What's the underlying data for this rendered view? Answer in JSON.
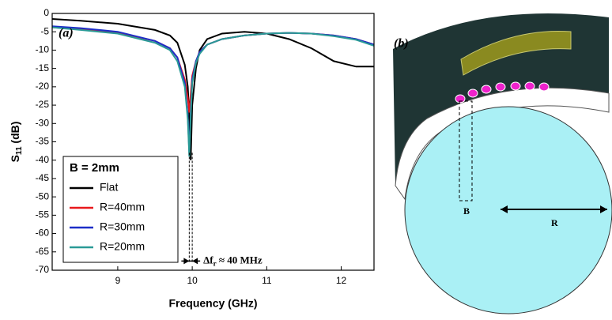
{
  "chart_data": {
    "type": "line",
    "panel_label": "(a)",
    "x_label": "Frequency (GHz)",
    "y_label_main": "S",
    "y_label_sub": "11",
    "y_label_unit": " (dB)",
    "x": [
      8.12,
      8.5,
      9,
      9.5,
      9.7,
      9.8,
      9.9,
      9.94,
      9.96,
      9.98,
      10.0,
      10.05,
      10.1,
      10.2,
      10.4,
      10.7,
      11,
      11.3,
      11.6,
      11.9,
      12.2,
      12.44
    ],
    "series": [
      {
        "name": "Flat",
        "color": "#000000",
        "values": [
          -1.5,
          -2,
          -2.8,
          -4.5,
          -6,
          -8,
          -14,
          -20,
          -28,
          -40,
          -25,
          -15,
          -10,
          -7,
          -5.5,
          -5,
          -5.5,
          -7,
          -9.5,
          -13,
          -14.5,
          -14.5
        ]
      },
      {
        "name": "R=40mm",
        "color": "#e8191c",
        "values": [
          -3.8,
          -4.3,
          -5.2,
          -7.5,
          -9.5,
          -12,
          -18,
          -23,
          -27,
          -22,
          -17,
          -13,
          -10.5,
          -8.5,
          -7,
          -6,
          -5.5,
          -5.3,
          -5.5,
          -6,
          -7,
          -8.5
        ]
      },
      {
        "name": "R=30mm",
        "color": "#1c2ec8",
        "values": [
          -3.5,
          -4,
          -5,
          -7.5,
          -9.5,
          -12,
          -19,
          -28,
          -38,
          -27,
          -18,
          -13,
          -10.5,
          -8.5,
          -7,
          -6,
          -5.5,
          -5.3,
          -5.5,
          -6,
          -7,
          -8.5
        ]
      },
      {
        "name": "R=20mm",
        "color": "#2a9a96",
        "values": [
          -3.8,
          -4.5,
          -5.5,
          -8,
          -10,
          -13,
          -20,
          -29,
          -39,
          -28,
          -19,
          -13.5,
          -11,
          -8.5,
          -7,
          -6,
          -5.5,
          -5.3,
          -5.5,
          -6.2,
          -7.2,
          -8.8
        ]
      }
    ],
    "legend_title": "B = 2mm",
    "markers": [
      9.96,
      10.0
    ],
    "annotation_main": "Δf",
    "annotation_sub": "r",
    "annotation_rest": " ≈ 40 MHz",
    "xlim": [
      8.12,
      12.44
    ],
    "ylim": [
      -70,
      0
    ],
    "xticks": [
      9,
      10,
      11,
      12
    ],
    "yticks": [
      0,
      -5,
      -10,
      -15,
      -20,
      -25,
      -30,
      -35,
      -40,
      -45,
      -50,
      -55,
      -60,
      -65,
      -70
    ]
  },
  "diagram": {
    "label": "(b)",
    "b_label": "B",
    "r_label": "R"
  }
}
